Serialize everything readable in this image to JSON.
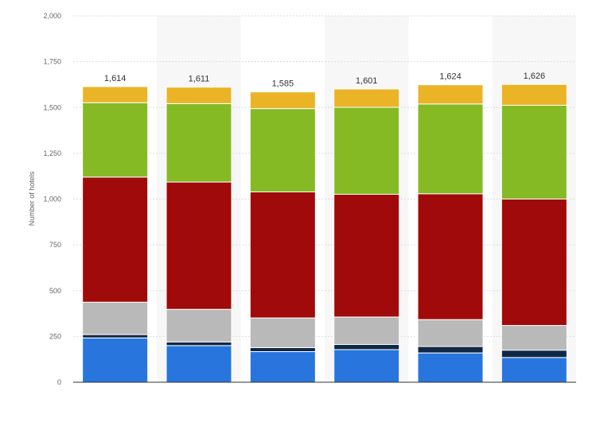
{
  "chart_data": {
    "type": "bar",
    "stacked": true,
    "ylabel": "Number of hotels",
    "ylim": [
      0,
      2000
    ],
    "yticks": [
      0,
      250,
      500,
      750,
      1000,
      1250,
      1500,
      1750,
      2000
    ],
    "ytick_labels": [
      "0",
      "250",
      "500",
      "750",
      "1,000",
      "1,250",
      "1,500",
      "1,750",
      "2,000"
    ],
    "grid": true,
    "categories": [
      "",
      "",
      "",
      "",
      "",
      ""
    ],
    "totals": [
      1614,
      1611,
      1585,
      1601,
      1624,
      1626
    ],
    "total_labels": [
      "1,614",
      "1,611",
      "1,585",
      "1,601",
      "1,624",
      "1,626"
    ],
    "series": [
      {
        "color": "#2876dd",
        "values": [
          242,
          200,
          167,
          178,
          160,
          135
        ]
      },
      {
        "color": "#0f2846",
        "values": [
          18,
          20,
          22,
          28,
          35,
          40
        ]
      },
      {
        "color": "#b9b9b9",
        "values": [
          177,
          178,
          162,
          150,
          147,
          135
        ]
      },
      {
        "color": "#a00a0a",
        "values": [
          683,
          695,
          688,
          670,
          687,
          690
        ]
      },
      {
        "color": "#85ba25",
        "values": [
          406,
          428,
          455,
          475,
          490,
          512
        ]
      },
      {
        "color": "#ebb427",
        "values": [
          88,
          90,
          91,
          100,
          105,
          114
        ]
      }
    ]
  }
}
